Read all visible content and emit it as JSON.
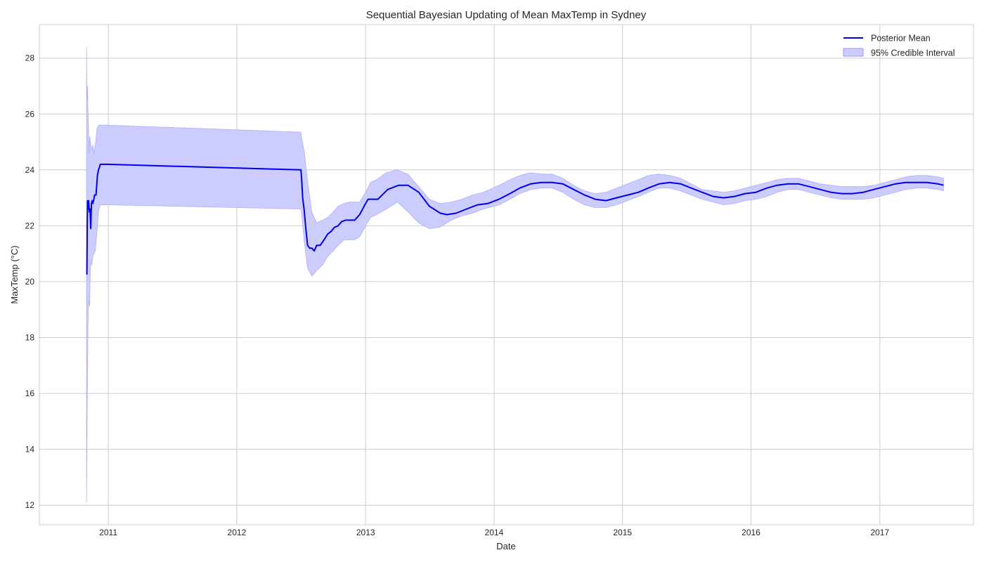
{
  "chart_data": {
    "type": "line",
    "title": "Sequential Bayesian Updating of Mean MaxTemp in Sydney",
    "xlabel": "Date",
    "ylabel": "MaxTemp (°C)",
    "xlim": [
      "2010-06-19",
      "2017-09-24"
    ],
    "ylim": [
      11.3,
      29.2
    ],
    "x_ticks": [
      "2011-01-01",
      "2012-01-01",
      "2013-01-01",
      "2014-01-01",
      "2015-01-01",
      "2016-01-01",
      "2017-01-01"
    ],
    "x_tick_labels": [
      "2011",
      "2012",
      "2013",
      "2014",
      "2015",
      "2016",
      "2017"
    ],
    "y_ticks": [
      12,
      14,
      16,
      18,
      20,
      22,
      24,
      26,
      28
    ],
    "y_tick_labels": [
      "12",
      "14",
      "16",
      "18",
      "20",
      "22",
      "24",
      "26",
      "28"
    ],
    "grid": true,
    "legend_position": "top-right",
    "colors": {
      "mean_line": "#0000ee",
      "interval_fill": "#ccccff",
      "interval_edge": "#9999ff",
      "grid": "#cccccc",
      "axes_border": "#cccccc"
    },
    "series": [
      {
        "name": "Posterior Mean",
        "kind": "line",
        "x": [
          "2010-11-01",
          "2010-11-02",
          "2010-11-03",
          "2010-11-05",
          "2010-11-06",
          "2010-11-08",
          "2010-11-10",
          "2010-11-12",
          "2010-11-14",
          "2010-11-16",
          "2010-11-18",
          "2010-11-20",
          "2010-11-23",
          "2010-11-27",
          "2010-12-01",
          "2010-12-04",
          "2010-12-07",
          "2010-12-09",
          "2010-12-12",
          "2010-12-14",
          "2010-12-17",
          "2010-12-20",
          "2010-12-23",
          "2010-12-26",
          "2010-12-30",
          "2012-07-01",
          "2012-07-03",
          "2012-07-06",
          "2012-07-10",
          "2012-07-15",
          "2012-07-20",
          "2012-07-26",
          "2012-08-01",
          "2012-08-08",
          "2012-08-15",
          "2012-08-25",
          "2012-09-05",
          "2012-09-15",
          "2012-09-25",
          "2012-10-05",
          "2012-10-15",
          "2012-10-25",
          "2012-11-05",
          "2012-11-15",
          "2012-12-01",
          "2012-12-15",
          "2013-01-01",
          "2013-01-08",
          "2013-01-15",
          "2013-01-25",
          "2013-02-05",
          "2013-03-05",
          "2013-04-05",
          "2013-05-01",
          "2013-06-01",
          "2013-07-01",
          "2013-08-01",
          "2013-08-20",
          "2013-09-15",
          "2013-10-15",
          "2013-11-15",
          "2013-12-15",
          "2014-01-15",
          "2014-02-15",
          "2014-03-15",
          "2014-04-15",
          "2014-05-15",
          "2014-06-15",
          "2014-07-15",
          "2014-08-15",
          "2014-09-15",
          "2014-10-15",
          "2014-11-15",
          "2014-12-15",
          "2015-01-15",
          "2015-02-15",
          "2015-03-15",
          "2015-04-15",
          "2015-05-15",
          "2015-06-15",
          "2015-07-15",
          "2015-08-15",
          "2015-09-15",
          "2015-10-15",
          "2015-11-15",
          "2015-12-15",
          "2016-01-15",
          "2016-02-15",
          "2016-03-15",
          "2016-04-15",
          "2016-05-15",
          "2016-06-15",
          "2016-07-15",
          "2016-08-15",
          "2016-09-15",
          "2016-10-15",
          "2016-11-15",
          "2016-12-15",
          "2017-01-15",
          "2017-02-15",
          "2017-03-15",
          "2017-04-15",
          "2017-05-15",
          "2017-06-15",
          "2017-07-01"
        ],
        "y": [
          20.25,
          22.0,
          22.9,
          22.6,
          22.9,
          22.5,
          22.6,
          21.9,
          22.8,
          22.9,
          22.8,
          22.9,
          23.1,
          23.1,
          23.8,
          24.0,
          24.1,
          24.2,
          24.2,
          24.2,
          24.2,
          24.2,
          24.2,
          24.2,
          24.2,
          24.0,
          23.7,
          23.0,
          22.6,
          21.9,
          21.3,
          21.2,
          21.2,
          21.1,
          21.3,
          21.3,
          21.5,
          21.7,
          21.8,
          21.95,
          22.0,
          22.15,
          22.2,
          22.2,
          22.2,
          22.4,
          22.8,
          22.95,
          22.95,
          22.95,
          22.95,
          23.3,
          23.45,
          23.45,
          23.2,
          22.7,
          22.45,
          22.4,
          22.45,
          22.6,
          22.75,
          22.8,
          22.95,
          23.15,
          23.35,
          23.5,
          23.55,
          23.55,
          23.5,
          23.3,
          23.1,
          22.95,
          22.9,
          23.0,
          23.1,
          23.2,
          23.35,
          23.5,
          23.55,
          23.5,
          23.35,
          23.2,
          23.05,
          23.0,
          23.05,
          23.15,
          23.2,
          23.35,
          23.45,
          23.5,
          23.5,
          23.4,
          23.3,
          23.2,
          23.15,
          23.15,
          23.2,
          23.3,
          23.4,
          23.5,
          23.55,
          23.55,
          23.55,
          23.5,
          23.45
        ]
      },
      {
        "name": "95% Credible Interval",
        "kind": "band",
        "x": [
          "2010-10-31",
          "2010-11-01",
          "2010-11-02",
          "2010-11-03",
          "2010-11-04",
          "2010-11-05",
          "2010-11-07",
          "2010-11-09",
          "2010-11-11",
          "2010-11-13",
          "2010-11-15",
          "2010-11-18",
          "2010-11-21",
          "2010-11-25",
          "2010-11-30",
          "2010-12-05",
          "2010-12-10",
          "2010-12-15",
          "2010-12-20",
          "2010-12-30",
          "2012-07-01",
          "2012-07-05",
          "2012-07-10",
          "2012-07-20",
          "2012-08-01",
          "2012-08-15",
          "2012-09-01",
          "2012-09-15",
          "2012-10-01",
          "2012-10-15",
          "2012-11-01",
          "2012-11-15",
          "2012-12-01",
          "2012-12-15",
          "2013-01-01",
          "2013-01-15",
          "2013-02-01",
          "2013-03-01",
          "2013-04-01",
          "2013-05-01",
          "2013-06-01",
          "2013-07-01",
          "2013-08-01",
          "2013-09-01",
          "2013-10-01",
          "2013-11-01",
          "2013-12-01",
          "2014-01-15",
          "2014-02-15",
          "2014-03-15",
          "2014-04-15",
          "2014-05-15",
          "2014-06-15",
          "2014-07-15",
          "2014-08-15",
          "2014-09-15",
          "2014-10-15",
          "2014-11-15",
          "2014-12-15",
          "2015-01-15",
          "2015-02-15",
          "2015-03-15",
          "2015-04-15",
          "2015-05-15",
          "2015-06-15",
          "2015-07-15",
          "2015-08-15",
          "2015-09-15",
          "2015-10-15",
          "2015-11-15",
          "2015-12-15",
          "2016-01-15",
          "2016-02-15",
          "2016-03-15",
          "2016-04-15",
          "2016-05-15",
          "2016-06-15",
          "2016-07-15",
          "2016-08-15",
          "2016-09-15",
          "2016-10-15",
          "2016-11-15",
          "2016-12-15",
          "2017-01-15",
          "2017-02-15",
          "2017-03-15",
          "2017-04-15",
          "2017-05-15",
          "2017-06-15",
          "2017-07-01"
        ],
        "lower": [
          12.1,
          13.5,
          15.5,
          17.0,
          18.2,
          19.1,
          19.3,
          19.1,
          20.5,
          20.7,
          20.6,
          20.9,
          21.0,
          21.1,
          21.8,
          22.6,
          22.75,
          22.75,
          22.75,
          22.75,
          22.6,
          22.2,
          21.5,
          20.5,
          20.2,
          20.4,
          20.6,
          20.9,
          21.1,
          21.3,
          21.5,
          21.5,
          21.5,
          21.6,
          22.0,
          22.3,
          22.4,
          22.6,
          22.85,
          22.5,
          22.1,
          21.9,
          21.95,
          22.2,
          22.35,
          22.45,
          22.6,
          22.75,
          22.95,
          23.15,
          23.3,
          23.35,
          23.35,
          23.2,
          22.95,
          22.75,
          22.65,
          22.65,
          22.75,
          22.9,
          23.05,
          23.2,
          23.35,
          23.35,
          23.25,
          23.1,
          22.95,
          22.85,
          22.75,
          22.8,
          22.9,
          22.95,
          23.05,
          23.2,
          23.3,
          23.3,
          23.2,
          23.1,
          23.0,
          22.95,
          22.95,
          22.95,
          23.0,
          23.1,
          23.2,
          23.3,
          23.35,
          23.35,
          23.3,
          23.25
        ],
        "upper": [
          28.4,
          26.9,
          26.5,
          27.0,
          26.2,
          25.8,
          24.6,
          25.2,
          25.0,
          24.8,
          24.7,
          24.9,
          24.6,
          24.9,
          25.5,
          25.6,
          25.6,
          25.6,
          25.6,
          25.6,
          25.35,
          25.0,
          24.7,
          23.6,
          22.5,
          22.1,
          22.2,
          22.3,
          22.5,
          22.7,
          22.8,
          22.85,
          22.85,
          22.85,
          23.2,
          23.55,
          23.65,
          23.9,
          24.0,
          23.85,
          23.4,
          22.95,
          22.8,
          22.85,
          22.95,
          23.1,
          23.2,
          23.45,
          23.65,
          23.8,
          23.9,
          23.85,
          23.85,
          23.7,
          23.45,
          23.25,
          23.15,
          23.2,
          23.35,
          23.5,
          23.65,
          23.8,
          23.85,
          23.8,
          23.7,
          23.5,
          23.3,
          23.25,
          23.2,
          23.25,
          23.35,
          23.45,
          23.55,
          23.65,
          23.7,
          23.7,
          23.6,
          23.5,
          23.45,
          23.4,
          23.4,
          23.4,
          23.45,
          23.55,
          23.65,
          23.75,
          23.8,
          23.8,
          23.75,
          23.7
        ]
      }
    ]
  }
}
